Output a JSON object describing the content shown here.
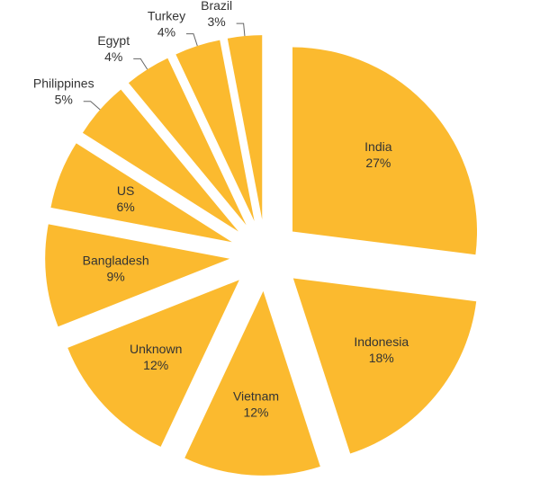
{
  "chart_data": {
    "type": "pie",
    "categories": [
      "India",
      "Indonesia",
      "Vietnam",
      "Unknown",
      "Bangladesh",
      "US",
      "Philippines",
      "Egypt",
      "Turkey",
      "Brazil"
    ],
    "values": [
      27,
      18,
      12,
      12,
      9,
      6,
      5,
      4,
      4,
      3
    ],
    "value_labels": [
      "27%",
      "18%",
      "12%",
      "12%",
      "9%",
      "6%",
      "5%",
      "4%",
      "4%",
      "3%"
    ],
    "color": "#fbba2f"
  }
}
